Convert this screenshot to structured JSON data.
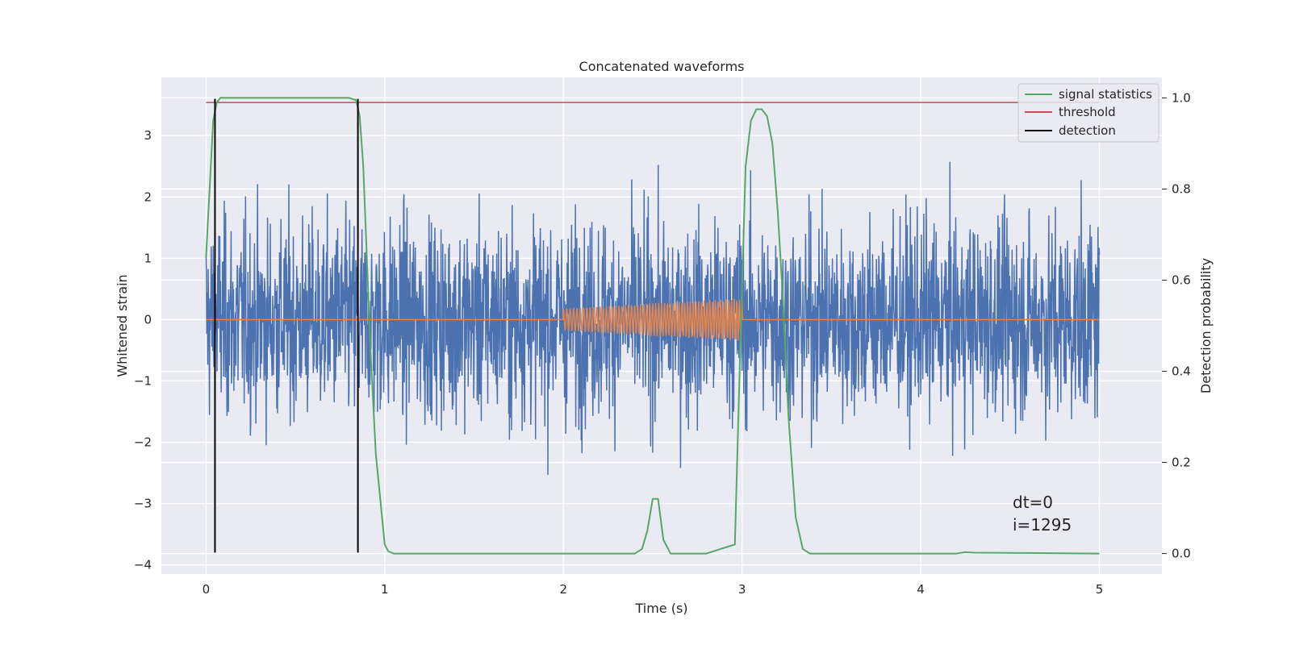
{
  "chart_data": {
    "type": "line",
    "title": "Concatenated waveforms",
    "xlabel": "Time (s)",
    "ylabel_left": "Whitened strain",
    "ylabel_right": "Detection probability",
    "xlim": [
      -0.25,
      5.35
    ],
    "ylim_left": [
      -4.15,
      3.95
    ],
    "ylim_right": [
      -0.045,
      1.045
    ],
    "x_ticks": [
      0,
      1,
      2,
      3,
      4,
      5
    ],
    "x_tick_labels": [
      "0",
      "1",
      "2",
      "3",
      "4",
      "5"
    ],
    "y_left_ticks": [
      -4,
      -3,
      -2,
      -1,
      0,
      1,
      2,
      3
    ],
    "y_left_tick_labels": [
      "−4",
      "−3",
      "−2",
      "−1",
      "0",
      "1",
      "2",
      "3"
    ],
    "y_right_ticks": [
      0.0,
      0.2,
      0.4,
      0.6,
      0.8,
      1.0
    ],
    "y_right_tick_labels": [
      "0.0",
      "0.2",
      "0.4",
      "0.6",
      "0.8",
      "1.0"
    ],
    "grid": true,
    "legend_position": "top-right",
    "legend": [
      {
        "label": "signal statistics",
        "color": "#55a868"
      },
      {
        "label": "threshold",
        "color": "#c44e52"
      },
      {
        "label": "detection",
        "color": "#000000"
      }
    ],
    "series": [
      {
        "role": "whitened-strain",
        "color": "#4c72b0",
        "x_range": [
          0,
          5
        ],
        "typical_amplitude": 0.8,
        "envelope_range": [
          -3.8,
          3.6
        ]
      },
      {
        "role": "injected-signal",
        "color": "#dd8452",
        "zero_baseline": true,
        "chirp_start": 2.0,
        "chirp_end": 3.0,
        "chirp_amplitude_start": 0.18,
        "chirp_amplitude_end": 0.35
      },
      {
        "name": "signal statistics",
        "color": "#55a868",
        "axis": "right",
        "x": [
          0.0,
          0.02,
          0.04,
          0.06,
          0.08,
          0.1,
          0.3,
          0.6,
          0.8,
          0.84,
          0.86,
          0.88,
          0.9,
          0.92,
          0.95,
          1.0,
          1.02,
          1.05,
          2.0,
          2.4,
          2.44,
          2.47,
          2.5,
          2.53,
          2.56,
          2.6,
          2.8,
          2.96,
          2.99,
          3.02,
          3.05,
          3.08,
          3.11,
          3.14,
          3.17,
          3.2,
          3.23,
          3.26,
          3.3,
          3.34,
          3.38,
          4.0,
          4.2,
          4.25,
          4.3,
          5.0
        ],
        "y": [
          0.65,
          0.8,
          0.95,
          0.99,
          1.0,
          1.0,
          1.0,
          1.0,
          1.0,
          0.995,
          0.96,
          0.85,
          0.65,
          0.45,
          0.22,
          0.02,
          0.005,
          0.0,
          0.0,
          0.0,
          0.01,
          0.05,
          0.12,
          0.12,
          0.03,
          0.0,
          0.0,
          0.02,
          0.45,
          0.85,
          0.95,
          0.975,
          0.975,
          0.96,
          0.9,
          0.75,
          0.55,
          0.3,
          0.08,
          0.01,
          0.0,
          0.0,
          0.0,
          0.003,
          0.002,
          0.0
        ]
      },
      {
        "name": "threshold",
        "color": "#c44e52",
        "axis": "right",
        "x": [
          0,
          5
        ],
        "y": [
          0.99,
          0.99
        ]
      }
    ],
    "detections": {
      "color": "#000000",
      "x": [
        0.05,
        0.85
      ],
      "y_range_left": [
        -3.8,
        3.6
      ]
    },
    "annotations": [
      "dt=0",
      "i=1295"
    ]
  }
}
